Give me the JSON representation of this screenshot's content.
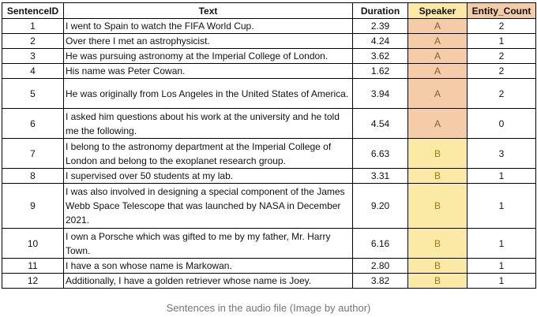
{
  "table": {
    "headers": [
      "SentenceID",
      "Text",
      "Duration",
      "Speaker",
      "Entity_Count"
    ],
    "rows": [
      {
        "id": "1",
        "text": "I went to Spain to watch the FIFA World Cup.",
        "duration": "2.39",
        "speaker": "A",
        "count": "2",
        "lines": 1
      },
      {
        "id": "2",
        "text": "Over there I met an astrophysicist.",
        "duration": "4.24",
        "speaker": "A",
        "count": "1",
        "lines": 1
      },
      {
        "id": "3",
        "text": "He was pursuing astronomy at the Imperial College of London.",
        "duration": "3.62",
        "speaker": "A",
        "count": "2",
        "lines": 1
      },
      {
        "id": "4",
        "text": "His name was Peter Cowan.",
        "duration": "1.62",
        "speaker": "A",
        "count": "2",
        "lines": 1
      },
      {
        "id": "5",
        "text": "He was originally from Los Angeles in the United States of America.",
        "duration": "3.94",
        "speaker": "A",
        "count": "2",
        "lines": 2
      },
      {
        "id": "6",
        "text": "I asked him questions about his work at the university and he told me the following.",
        "duration": "4.54",
        "speaker": "A",
        "count": "0",
        "lines": 2
      },
      {
        "id": "7",
        "text": "I belong to the astronomy department at the Imperial College of London and belong to the exoplanet research group.",
        "duration": "6.63",
        "speaker": "B",
        "count": "3",
        "lines": 2
      },
      {
        "id": "8",
        "text": "I supervised over 50 students at my lab.",
        "duration": "3.31",
        "speaker": "B",
        "count": "1",
        "lines": 1
      },
      {
        "id": "9",
        "text": "I was also involved in designing a special component of the James Webb Space Telescope that was launched by NASA in December 2021.",
        "duration": "9.20",
        "speaker": "B",
        "count": "1",
        "lines": 3
      },
      {
        "id": "10",
        "text": "I own a Porsche which was gifted to me by my father, Mr. Harry Town.",
        "duration": "6.16",
        "speaker": "B",
        "count": "1",
        "lines": 2
      },
      {
        "id": "11",
        "text": "I have a son whose name is Markowan.",
        "duration": "2.80",
        "speaker": "B",
        "count": "1",
        "lines": 1
      },
      {
        "id": "12",
        "text": "Additionally, I have a golden retriever whose name is Joey.",
        "duration": "3.82",
        "speaker": "B",
        "count": "1",
        "lines": 1
      }
    ]
  },
  "colors": {
    "speaker_a_fill": "#f4cca8",
    "speaker_b_fill": "#fbeaa5"
  },
  "caption": "Sentences in the audio file (Image by author)"
}
